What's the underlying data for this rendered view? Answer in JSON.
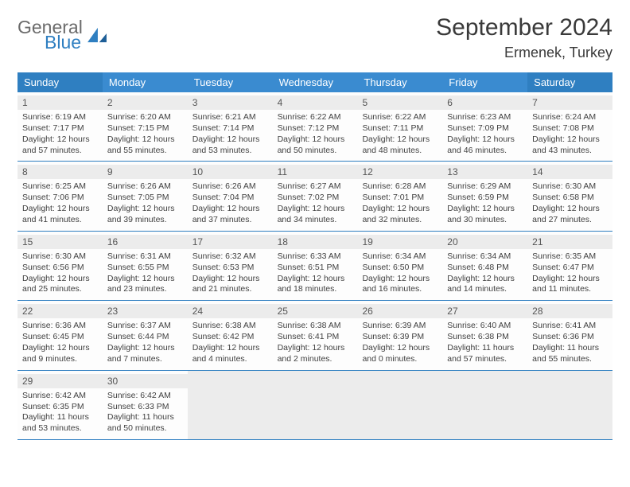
{
  "brand": {
    "word1": "General",
    "word2": "Blue"
  },
  "title": "September 2024",
  "subtitle": "Ermenek, Turkey",
  "colors": {
    "header_bg": "#3a8bd0",
    "header_weekend_bg": "#2f7fc1",
    "week_border": "#2f7fc1",
    "daynum_bg": "#ececec",
    "text": "#3a3a3a"
  },
  "day_labels": [
    "Sunday",
    "Monday",
    "Tuesday",
    "Wednesday",
    "Thursday",
    "Friday",
    "Saturday"
  ],
  "weeks": [
    [
      {
        "n": "1",
        "sr": "Sunrise: 6:19 AM",
        "ss": "Sunset: 7:17 PM",
        "d1": "Daylight: 12 hours",
        "d2": "and 57 minutes."
      },
      {
        "n": "2",
        "sr": "Sunrise: 6:20 AM",
        "ss": "Sunset: 7:15 PM",
        "d1": "Daylight: 12 hours",
        "d2": "and 55 minutes."
      },
      {
        "n": "3",
        "sr": "Sunrise: 6:21 AM",
        "ss": "Sunset: 7:14 PM",
        "d1": "Daylight: 12 hours",
        "d2": "and 53 minutes."
      },
      {
        "n": "4",
        "sr": "Sunrise: 6:22 AM",
        "ss": "Sunset: 7:12 PM",
        "d1": "Daylight: 12 hours",
        "d2": "and 50 minutes."
      },
      {
        "n": "5",
        "sr": "Sunrise: 6:22 AM",
        "ss": "Sunset: 7:11 PM",
        "d1": "Daylight: 12 hours",
        "d2": "and 48 minutes."
      },
      {
        "n": "6",
        "sr": "Sunrise: 6:23 AM",
        "ss": "Sunset: 7:09 PM",
        "d1": "Daylight: 12 hours",
        "d2": "and 46 minutes."
      },
      {
        "n": "7",
        "sr": "Sunrise: 6:24 AM",
        "ss": "Sunset: 7:08 PM",
        "d1": "Daylight: 12 hours",
        "d2": "and 43 minutes."
      }
    ],
    [
      {
        "n": "8",
        "sr": "Sunrise: 6:25 AM",
        "ss": "Sunset: 7:06 PM",
        "d1": "Daylight: 12 hours",
        "d2": "and 41 minutes."
      },
      {
        "n": "9",
        "sr": "Sunrise: 6:26 AM",
        "ss": "Sunset: 7:05 PM",
        "d1": "Daylight: 12 hours",
        "d2": "and 39 minutes."
      },
      {
        "n": "10",
        "sr": "Sunrise: 6:26 AM",
        "ss": "Sunset: 7:04 PM",
        "d1": "Daylight: 12 hours",
        "d2": "and 37 minutes."
      },
      {
        "n": "11",
        "sr": "Sunrise: 6:27 AM",
        "ss": "Sunset: 7:02 PM",
        "d1": "Daylight: 12 hours",
        "d2": "and 34 minutes."
      },
      {
        "n": "12",
        "sr": "Sunrise: 6:28 AM",
        "ss": "Sunset: 7:01 PM",
        "d1": "Daylight: 12 hours",
        "d2": "and 32 minutes."
      },
      {
        "n": "13",
        "sr": "Sunrise: 6:29 AM",
        "ss": "Sunset: 6:59 PM",
        "d1": "Daylight: 12 hours",
        "d2": "and 30 minutes."
      },
      {
        "n": "14",
        "sr": "Sunrise: 6:30 AM",
        "ss": "Sunset: 6:58 PM",
        "d1": "Daylight: 12 hours",
        "d2": "and 27 minutes."
      }
    ],
    [
      {
        "n": "15",
        "sr": "Sunrise: 6:30 AM",
        "ss": "Sunset: 6:56 PM",
        "d1": "Daylight: 12 hours",
        "d2": "and 25 minutes."
      },
      {
        "n": "16",
        "sr": "Sunrise: 6:31 AM",
        "ss": "Sunset: 6:55 PM",
        "d1": "Daylight: 12 hours",
        "d2": "and 23 minutes."
      },
      {
        "n": "17",
        "sr": "Sunrise: 6:32 AM",
        "ss": "Sunset: 6:53 PM",
        "d1": "Daylight: 12 hours",
        "d2": "and 21 minutes."
      },
      {
        "n": "18",
        "sr": "Sunrise: 6:33 AM",
        "ss": "Sunset: 6:51 PM",
        "d1": "Daylight: 12 hours",
        "d2": "and 18 minutes."
      },
      {
        "n": "19",
        "sr": "Sunrise: 6:34 AM",
        "ss": "Sunset: 6:50 PM",
        "d1": "Daylight: 12 hours",
        "d2": "and 16 minutes."
      },
      {
        "n": "20",
        "sr": "Sunrise: 6:34 AM",
        "ss": "Sunset: 6:48 PM",
        "d1": "Daylight: 12 hours",
        "d2": "and 14 minutes."
      },
      {
        "n": "21",
        "sr": "Sunrise: 6:35 AM",
        "ss": "Sunset: 6:47 PM",
        "d1": "Daylight: 12 hours",
        "d2": "and 11 minutes."
      }
    ],
    [
      {
        "n": "22",
        "sr": "Sunrise: 6:36 AM",
        "ss": "Sunset: 6:45 PM",
        "d1": "Daylight: 12 hours",
        "d2": "and 9 minutes."
      },
      {
        "n": "23",
        "sr": "Sunrise: 6:37 AM",
        "ss": "Sunset: 6:44 PM",
        "d1": "Daylight: 12 hours",
        "d2": "and 7 minutes."
      },
      {
        "n": "24",
        "sr": "Sunrise: 6:38 AM",
        "ss": "Sunset: 6:42 PM",
        "d1": "Daylight: 12 hours",
        "d2": "and 4 minutes."
      },
      {
        "n": "25",
        "sr": "Sunrise: 6:38 AM",
        "ss": "Sunset: 6:41 PM",
        "d1": "Daylight: 12 hours",
        "d2": "and 2 minutes."
      },
      {
        "n": "26",
        "sr": "Sunrise: 6:39 AM",
        "ss": "Sunset: 6:39 PM",
        "d1": "Daylight: 12 hours",
        "d2": "and 0 minutes."
      },
      {
        "n": "27",
        "sr": "Sunrise: 6:40 AM",
        "ss": "Sunset: 6:38 PM",
        "d1": "Daylight: 11 hours",
        "d2": "and 57 minutes."
      },
      {
        "n": "28",
        "sr": "Sunrise: 6:41 AM",
        "ss": "Sunset: 6:36 PM",
        "d1": "Daylight: 11 hours",
        "d2": "and 55 minutes."
      }
    ],
    [
      {
        "n": "29",
        "sr": "Sunrise: 6:42 AM",
        "ss": "Sunset: 6:35 PM",
        "d1": "Daylight: 11 hours",
        "d2": "and 53 minutes."
      },
      {
        "n": "30",
        "sr": "Sunrise: 6:42 AM",
        "ss": "Sunset: 6:33 PM",
        "d1": "Daylight: 11 hours",
        "d2": "and 50 minutes."
      },
      {
        "empty": true
      },
      {
        "empty": true
      },
      {
        "empty": true
      },
      {
        "empty": true
      },
      {
        "empty": true
      }
    ]
  ]
}
